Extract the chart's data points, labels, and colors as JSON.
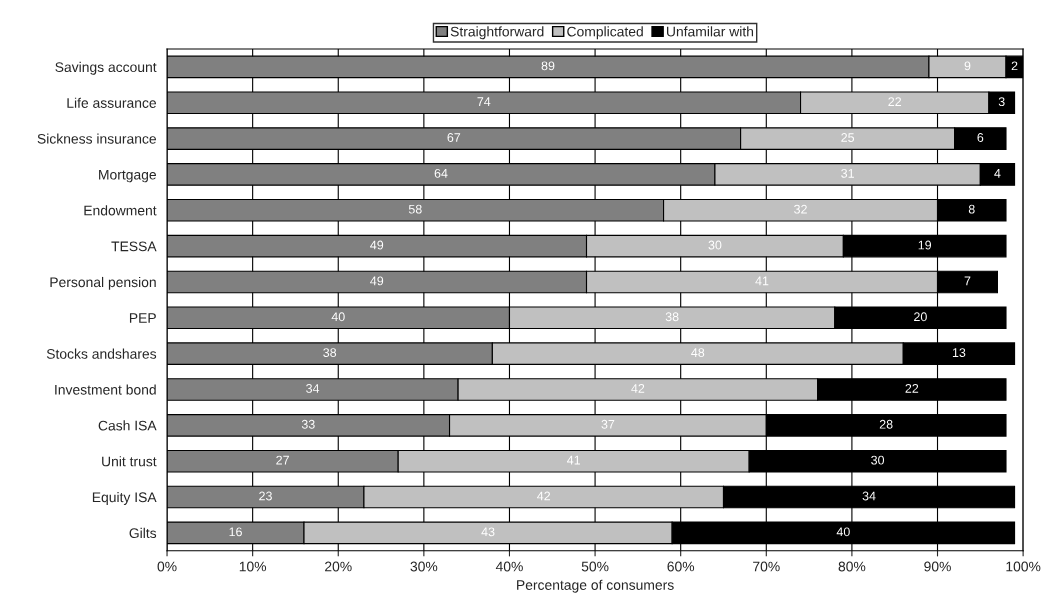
{
  "chart_data": {
    "type": "bar",
    "orientation": "horizontal",
    "stacked": true,
    "xlabel": "Percentage of consumers",
    "categories": [
      "Savings account",
      "Life assurance",
      "Sickness insurance",
      "Mortgage",
      "Endowment",
      "TESSA",
      "Personal pension",
      "PEP",
      "Stocks andshares",
      "Investment bond",
      "Cash ISA",
      "Unit trust",
      "Equity ISA",
      "Gilts"
    ],
    "series": [
      {
        "name": "Straightforward",
        "color": "#808080",
        "values": [
          89,
          74,
          67,
          64,
          58,
          49,
          49,
          40,
          38,
          34,
          33,
          27,
          23,
          16
        ]
      },
      {
        "name": "Complicated",
        "color": "#c0c0c0",
        "values": [
          9,
          22,
          25,
          31,
          32,
          30,
          41,
          38,
          48,
          42,
          37,
          41,
          42,
          43
        ]
      },
      {
        "name": "Unfamilar with",
        "color": "#000000",
        "values": [
          2,
          3,
          6,
          4,
          8,
          19,
          7,
          20,
          13,
          22,
          28,
          30,
          34,
          40
        ]
      }
    ],
    "xlim": [
      0,
      100
    ],
    "xticks": [
      {
        "value": 0,
        "label": "0%"
      },
      {
        "value": 10,
        "label": "10%"
      },
      {
        "value": 20,
        "label": "20%"
      },
      {
        "value": 30,
        "label": "30%"
      },
      {
        "value": 40,
        "label": "40%"
      },
      {
        "value": 50,
        "label": "50%"
      },
      {
        "value": 60,
        "label": "60%"
      },
      {
        "value": 70,
        "label": "70%"
      },
      {
        "value": 80,
        "label": "80%"
      },
      {
        "value": 90,
        "label": "90%"
      },
      {
        "value": 100,
        "label": "100%"
      }
    ],
    "grid": "x",
    "legend": "top",
    "data_labels": true
  }
}
